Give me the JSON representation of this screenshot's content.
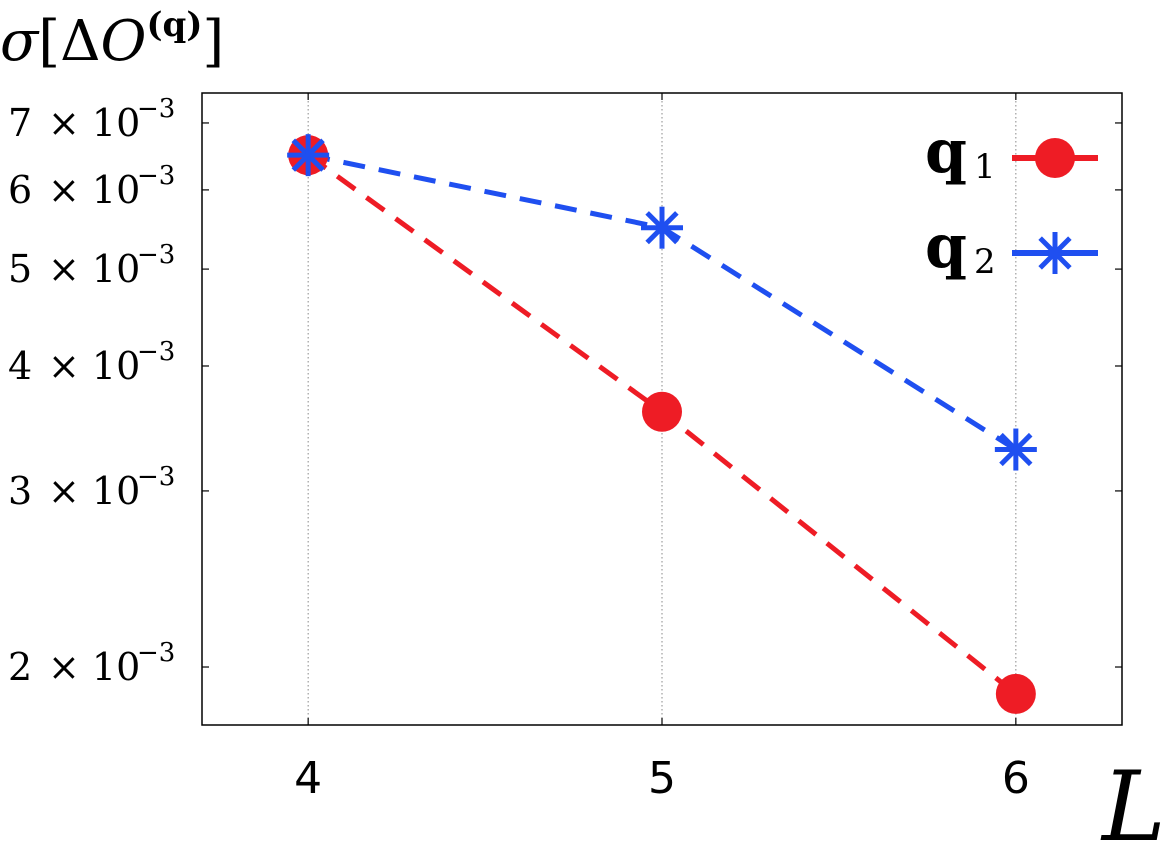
{
  "chart_data": {
    "type": "line",
    "ylabel": "σ[ΔO(q)]",
    "xlabel": "L",
    "x": [
      4,
      5,
      6
    ],
    "x_ticks": [
      "4",
      "5",
      "6"
    ],
    "xlim": [
      3.7,
      6.3
    ],
    "y_scale": "log",
    "ylim": [
      0.00175,
      0.0075
    ],
    "y_ticks": [
      {
        "value": 0.007,
        "mantissa": "7",
        "exponent": "−3"
      },
      {
        "value": 0.006,
        "mantissa": "6",
        "exponent": "−3"
      },
      {
        "value": 0.005,
        "mantissa": "5",
        "exponent": "−3"
      },
      {
        "value": 0.004,
        "mantissa": "4",
        "exponent": "−3"
      },
      {
        "value": 0.003,
        "mantissa": "3",
        "exponent": "−3"
      },
      {
        "value": 0.002,
        "mantissa": "2",
        "exponent": "−3"
      }
    ],
    "tick_times": "× 10",
    "grid": "vertical dotted at x ticks",
    "legend_position": "top-right",
    "series": [
      {
        "name": "q",
        "subscript": "1",
        "values": [
          0.0065,
          0.0036,
          0.00188
        ],
        "color": "#ee1c25",
        "marker": "circle",
        "linestyle": "dashed"
      },
      {
        "name": "q",
        "subscript": "2",
        "values": [
          0.0065,
          0.0055,
          0.0033
        ],
        "color": "#1f4ff0",
        "marker": "asterisk",
        "linestyle": "dashed"
      }
    ]
  }
}
